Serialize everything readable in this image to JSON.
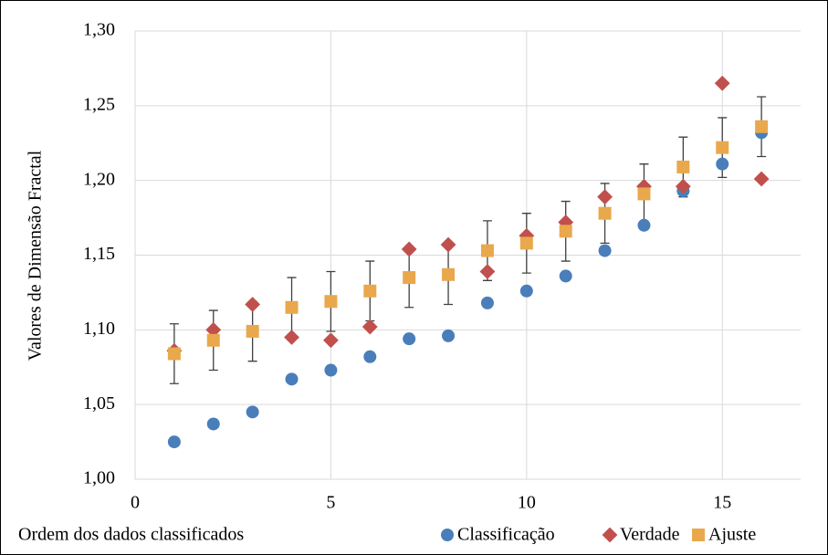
{
  "chart_data": {
    "type": "scatter",
    "x_label": "Ordem dos dados classificados",
    "y_label": "Valores de Dimensão Fractal",
    "x": [
      1,
      2,
      3,
      4,
      5,
      6,
      7,
      8,
      9,
      10,
      11,
      12,
      13,
      14,
      15,
      16
    ],
    "series": [
      {
        "name": "Classificação",
        "color": "#4a7ebb",
        "marker": "circle",
        "values": [
          1.025,
          1.037,
          1.045,
          1.067,
          1.073,
          1.082,
          1.094,
          1.096,
          1.118,
          1.126,
          1.136,
          1.153,
          1.17,
          1.193,
          1.211,
          1.232
        ]
      },
      {
        "name": "Verdade",
        "color": "#c0504d",
        "marker": "diamond",
        "values": [
          1.086,
          1.1,
          1.117,
          1.095,
          1.093,
          1.102,
          1.154,
          1.157,
          1.139,
          1.163,
          1.172,
          1.189,
          1.196,
          1.196,
          1.265,
          1.201
        ]
      },
      {
        "name": "Ajuste",
        "color": "#e9a84c",
        "marker": "square",
        "values": [
          1.084,
          1.093,
          1.099,
          1.115,
          1.119,
          1.126,
          1.135,
          1.137,
          1.153,
          1.158,
          1.166,
          1.178,
          1.191,
          1.209,
          1.222,
          1.236
        ],
        "errors": [
          0.02,
          0.02,
          0.02,
          0.02,
          0.02,
          0.02,
          0.02,
          0.02,
          0.02,
          0.02,
          0.02,
          0.02,
          0.02,
          0.02,
          0.02,
          0.02
        ]
      }
    ],
    "xlim": [
      0,
      17
    ],
    "xticks": [
      0,
      5,
      10,
      15
    ],
    "ylim": [
      1.0,
      1.3
    ],
    "yticks": [
      {
        "value": 1.0,
        "label": "1,00"
      },
      {
        "value": 1.05,
        "label": "1,05"
      },
      {
        "value": 1.1,
        "label": "1,10"
      },
      {
        "value": 1.15,
        "label": "1,15"
      },
      {
        "value": 1.2,
        "label": "1,20"
      },
      {
        "value": 1.25,
        "label": "1,25"
      },
      {
        "value": 1.3,
        "label": "1,30"
      }
    ],
    "grid": true,
    "legend": "bottom"
  }
}
